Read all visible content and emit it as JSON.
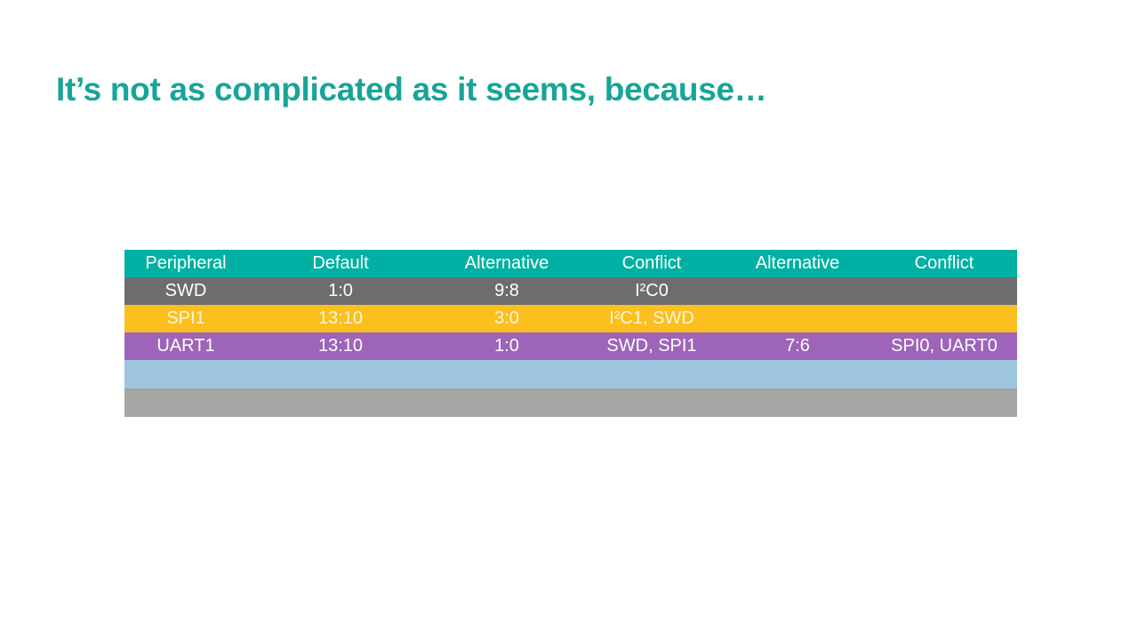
{
  "title": "It’s not as complicated as it seems, because…",
  "table": {
    "header": [
      "Peripheral",
      "Default",
      "Alternative",
      "Conflict",
      "Alternative",
      "Conflict"
    ],
    "rows": [
      [
        "SWD",
        "1:0",
        "9:8",
        "I²C0",
        null,
        null
      ],
      [
        "SPI1",
        "13:10",
        "3:0",
        "I²C1, SWD",
        null,
        null
      ],
      [
        "UART1",
        "13:10",
        "1:0",
        "SWD, SPI1",
        "7:6",
        "SPI0, UART0"
      ]
    ]
  }
}
